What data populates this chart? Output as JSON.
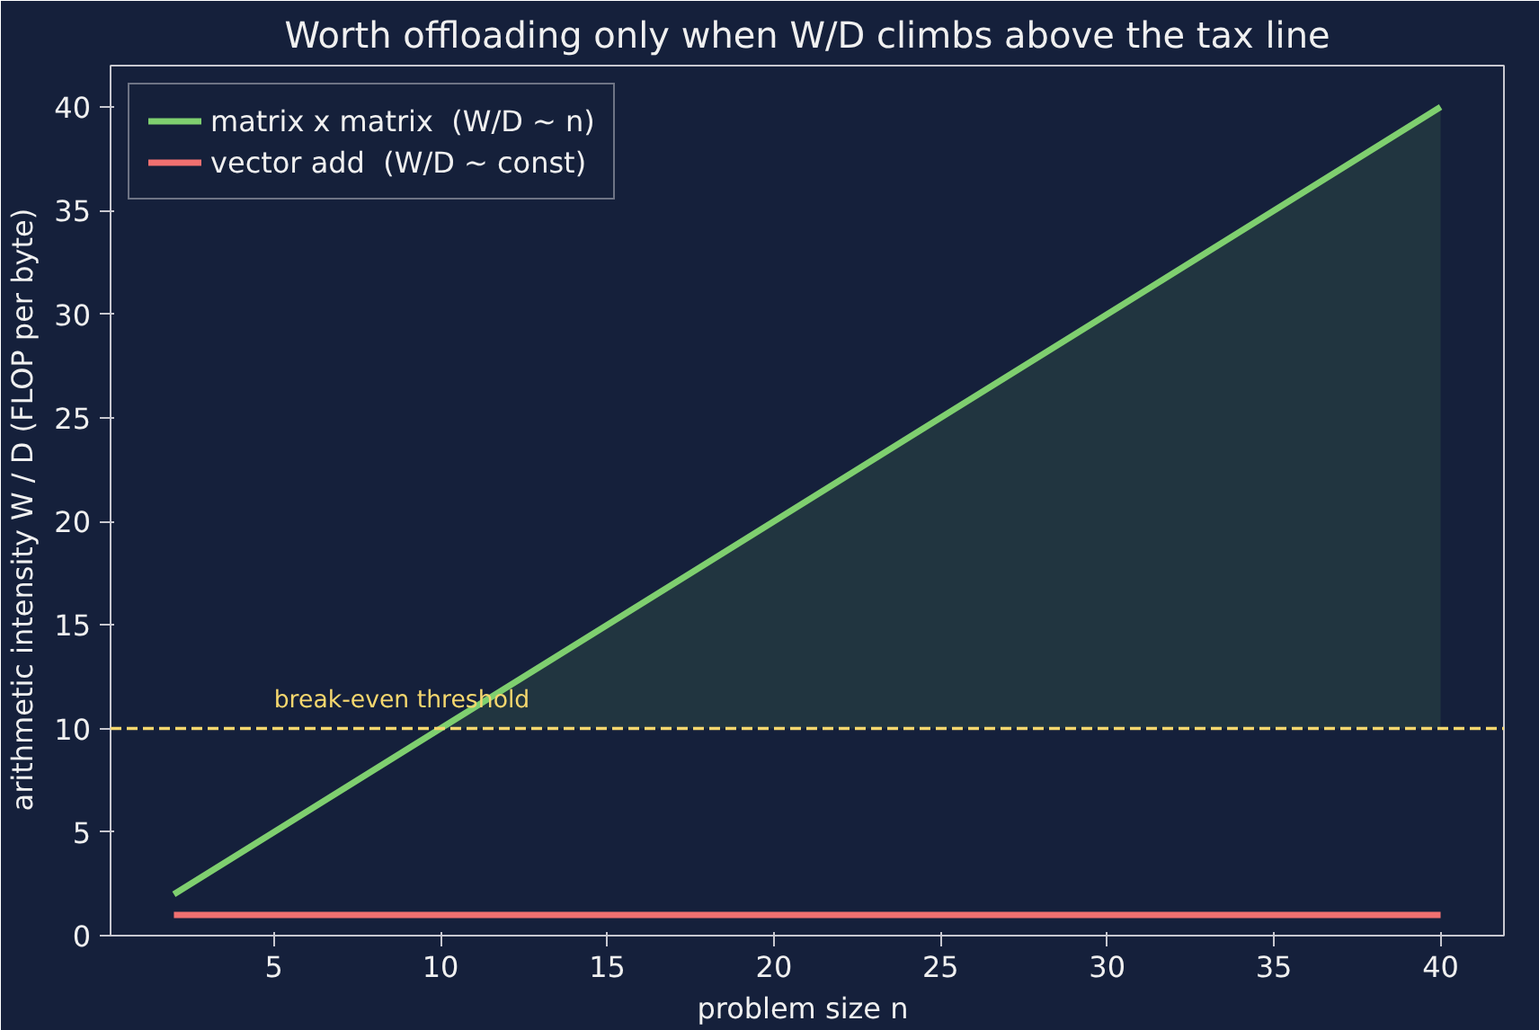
{
  "chart_data": {
    "type": "line",
    "title": "Worth offloading only when W/D climbs above the tax line",
    "xlabel": "problem size  n",
    "ylabel": "arithmetic intensity  W / D  (FLOP per byte)",
    "series": [
      {
        "name": "matrix x matrix  (W/D ~ n)",
        "color": "#7fcf6f",
        "x": [
          2,
          10,
          40
        ],
        "values": [
          2,
          10,
          40
        ],
        "lower": [
          null,
          10,
          10
        ],
        "upper": [
          null,
          10,
          40
        ]
      },
      {
        "name": "vector add  (W/D ~ const)",
        "color": "#f07070",
        "x": [
          2,
          40
        ],
        "values": [
          1,
          1
        ]
      }
    ],
    "xlim": [
      0.1,
      41.9
    ],
    "ylim": [
      0,
      42
    ],
    "xticks": [
      5,
      10,
      15,
      20,
      25,
      30,
      35,
      40
    ],
    "yticks": [
      0,
      5,
      10,
      15,
      20,
      25,
      30,
      35,
      40
    ],
    "ref_lines": [
      {
        "axis": "y",
        "value": 10,
        "label": "break-even threshold",
        "color": "#f5d76e",
        "line_style": "dashed"
      }
    ],
    "grid": false,
    "legend": "top left",
    "marker": "none",
    "line_style": "solid"
  }
}
